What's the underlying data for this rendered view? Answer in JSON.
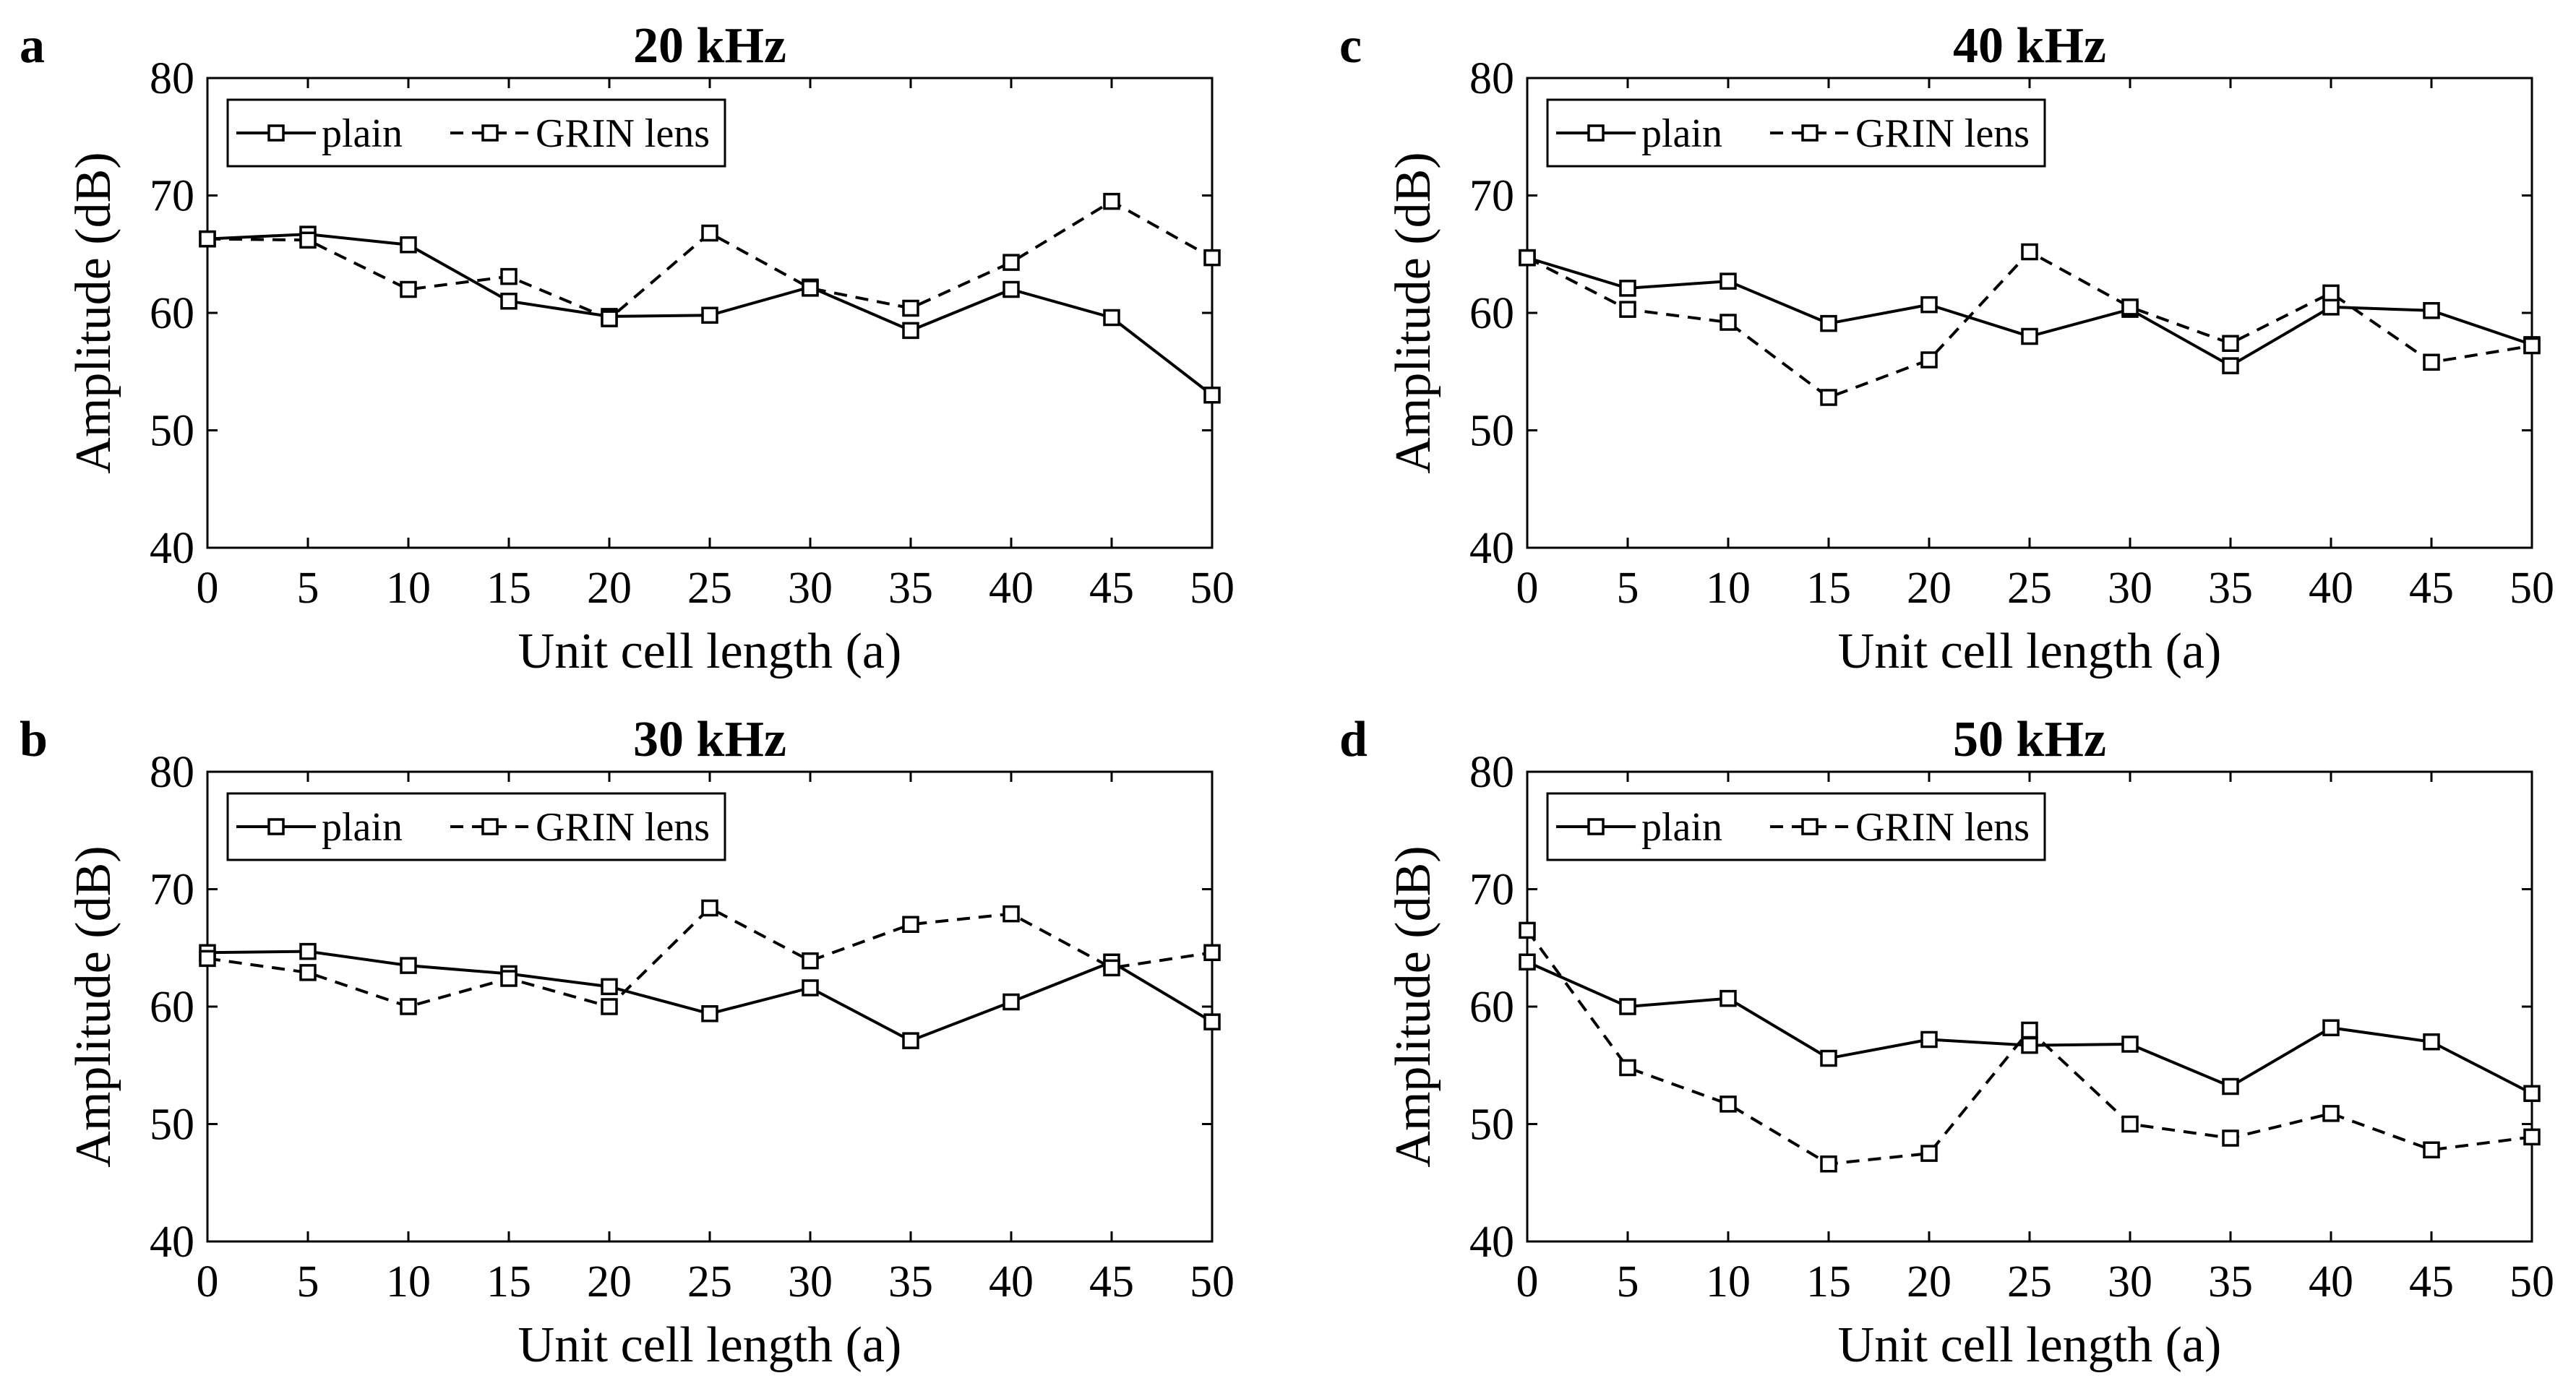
{
  "chart_data": [
    {
      "type": "line",
      "panel": "a",
      "title": "20 kHz",
      "xlabel": "Unit cell length (a)",
      "ylabel": "Amplitude (dB)",
      "x": [
        0,
        5,
        10,
        15,
        20,
        25,
        30,
        35,
        40,
        45,
        50
      ],
      "xticks": [
        "0",
        "5",
        "10",
        "15",
        "20",
        "25",
        "30",
        "35",
        "40",
        "45",
        "50"
      ],
      "yticks": [
        "40",
        "50",
        "60",
        "70",
        "80"
      ],
      "xlim": [
        0,
        50
      ],
      "ylim": [
        40,
        80
      ],
      "legend": "top-left",
      "series": [
        {
          "name": "plain",
          "style": "solid",
          "values": [
            66.3,
            66.7,
            65.8,
            61.0,
            59.7,
            59.8,
            62.2,
            58.5,
            62.0,
            59.6,
            53.0
          ]
        },
        {
          "name": "GRIN lens",
          "style": "dashed",
          "values": [
            66.3,
            66.2,
            62.0,
            63.1,
            59.5,
            66.8,
            62.1,
            60.4,
            64.3,
            69.5,
            64.7
          ]
        }
      ]
    },
    {
      "type": "line",
      "panel": "b",
      "title": "30 kHz",
      "xlabel": "Unit cell length (a)",
      "ylabel": "Amplitude (dB)",
      "x": [
        0,
        5,
        10,
        15,
        20,
        25,
        30,
        35,
        40,
        45,
        50
      ],
      "xticks": [
        "0",
        "5",
        "10",
        "15",
        "20",
        "25",
        "30",
        "35",
        "40",
        "45",
        "50"
      ],
      "yticks": [
        "40",
        "50",
        "60",
        "70",
        "80"
      ],
      "xlim": [
        0,
        50
      ],
      "ylim": [
        40,
        80
      ],
      "legend": "top-left",
      "series": [
        {
          "name": "plain",
          "style": "solid",
          "values": [
            64.6,
            64.7,
            63.5,
            62.8,
            61.7,
            59.4,
            61.6,
            57.1,
            60.4,
            63.8,
            58.7
          ]
        },
        {
          "name": "GRIN lens",
          "style": "dashed",
          "values": [
            64.1,
            62.9,
            60.0,
            62.4,
            60.0,
            68.4,
            63.9,
            67.0,
            67.9,
            63.3,
            64.6
          ]
        }
      ]
    },
    {
      "type": "line",
      "panel": "c",
      "title": "40 kHz",
      "xlabel": "Unit cell length (a)",
      "ylabel": "Amplitude (dB)",
      "x": [
        0,
        5,
        10,
        15,
        20,
        25,
        30,
        35,
        40,
        45,
        50
      ],
      "xticks": [
        "0",
        "5",
        "10",
        "15",
        "20",
        "25",
        "30",
        "35",
        "40",
        "45",
        "50"
      ],
      "yticks": [
        "40",
        "50",
        "60",
        "70",
        "80"
      ],
      "xlim": [
        0,
        50
      ],
      "ylim": [
        40,
        80
      ],
      "legend": "top-left",
      "series": [
        {
          "name": "plain",
          "style": "solid",
          "values": [
            64.7,
            62.1,
            62.7,
            59.1,
            60.7,
            58.0,
            60.3,
            55.5,
            60.5,
            60.2,
            57.3
          ]
        },
        {
          "name": "GRIN lens",
          "style": "dashed",
          "values": [
            64.7,
            60.3,
            59.2,
            52.8,
            56.0,
            65.2,
            60.5,
            57.4,
            61.7,
            55.8,
            57.2
          ]
        }
      ]
    },
    {
      "type": "line",
      "panel": "d",
      "title": "50 kHz",
      "xlabel": "Unit cell length (a)",
      "ylabel": "Amplitude (dB)",
      "x": [
        0,
        5,
        10,
        15,
        20,
        25,
        30,
        35,
        40,
        45,
        50
      ],
      "xticks": [
        "0",
        "5",
        "10",
        "15",
        "20",
        "25",
        "30",
        "35",
        "40",
        "45",
        "50"
      ],
      "yticks": [
        "40",
        "50",
        "60",
        "70",
        "80"
      ],
      "xlim": [
        0,
        50
      ],
      "ylim": [
        40,
        80
      ],
      "legend": "top-left",
      "series": [
        {
          "name": "plain",
          "style": "solid",
          "values": [
            63.8,
            60.0,
            60.7,
            55.6,
            57.2,
            56.7,
            56.8,
            53.2,
            58.2,
            57.0,
            52.6
          ]
        },
        {
          "name": "GRIN lens",
          "style": "dashed",
          "values": [
            66.5,
            54.8,
            51.7,
            46.6,
            47.5,
            58.0,
            50.0,
            48.8,
            50.9,
            47.8,
            48.9
          ]
        }
      ]
    }
  ]
}
